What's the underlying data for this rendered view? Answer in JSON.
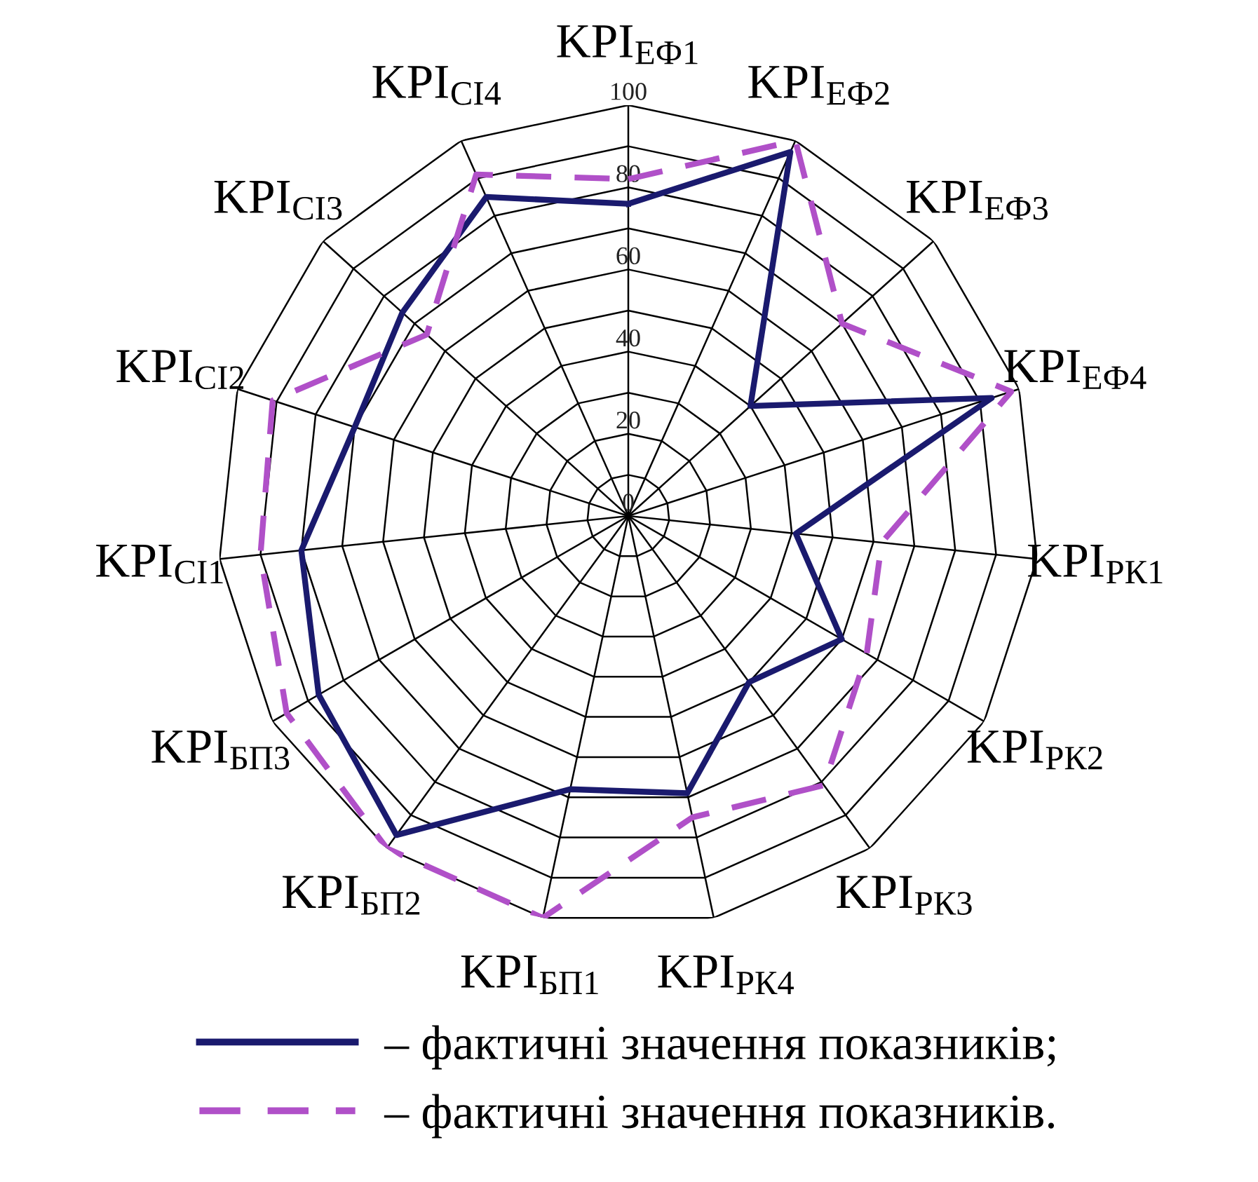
{
  "chart_data": {
    "type": "radar",
    "categories": [
      "KPI$_{ЕФ1}$",
      "KPI$_{ЕФ2}$",
      "KPI$_{ЕФ3}$",
      "KPI$_{ЕФ4}$",
      "KPI$_{РК1}$",
      "KPI$_{РК2}$",
      "KPI$_{РК3}$",
      "KPI$_{РК4}$",
      "KPI$_{БП1}$",
      "KPI$_{БП2}$",
      "KPI$_{БП3}$",
      "KPI$_{СІ1}$",
      "KPI$_{СІ2}$",
      "KPI$_{СІ3}$",
      "KPI$_{СІ4}$"
    ],
    "series": [
      {
        "name": "– фактичні значення показників;",
        "color": "#1a1a6e",
        "line_style": "solid",
        "values": [
          76,
          97,
          40,
          93,
          41,
          60,
          50,
          69,
          68,
          96,
          87,
          80,
          70,
          74,
          85
        ]
      },
      {
        "name": "– фактичні значення показників.",
        "color": "#b050c8",
        "line_style": "dashed",
        "values": [
          82,
          100,
          70,
          98,
          62,
          67,
          81,
          75,
          100,
          100,
          96,
          90,
          91,
          66,
          91
        ]
      }
    ],
    "ylim": [
      0,
      100
    ],
    "yticks": [
      0,
      20,
      40,
      60,
      80,
      100
    ],
    "grid": true,
    "legend": "bottom",
    "marker": "none"
  }
}
